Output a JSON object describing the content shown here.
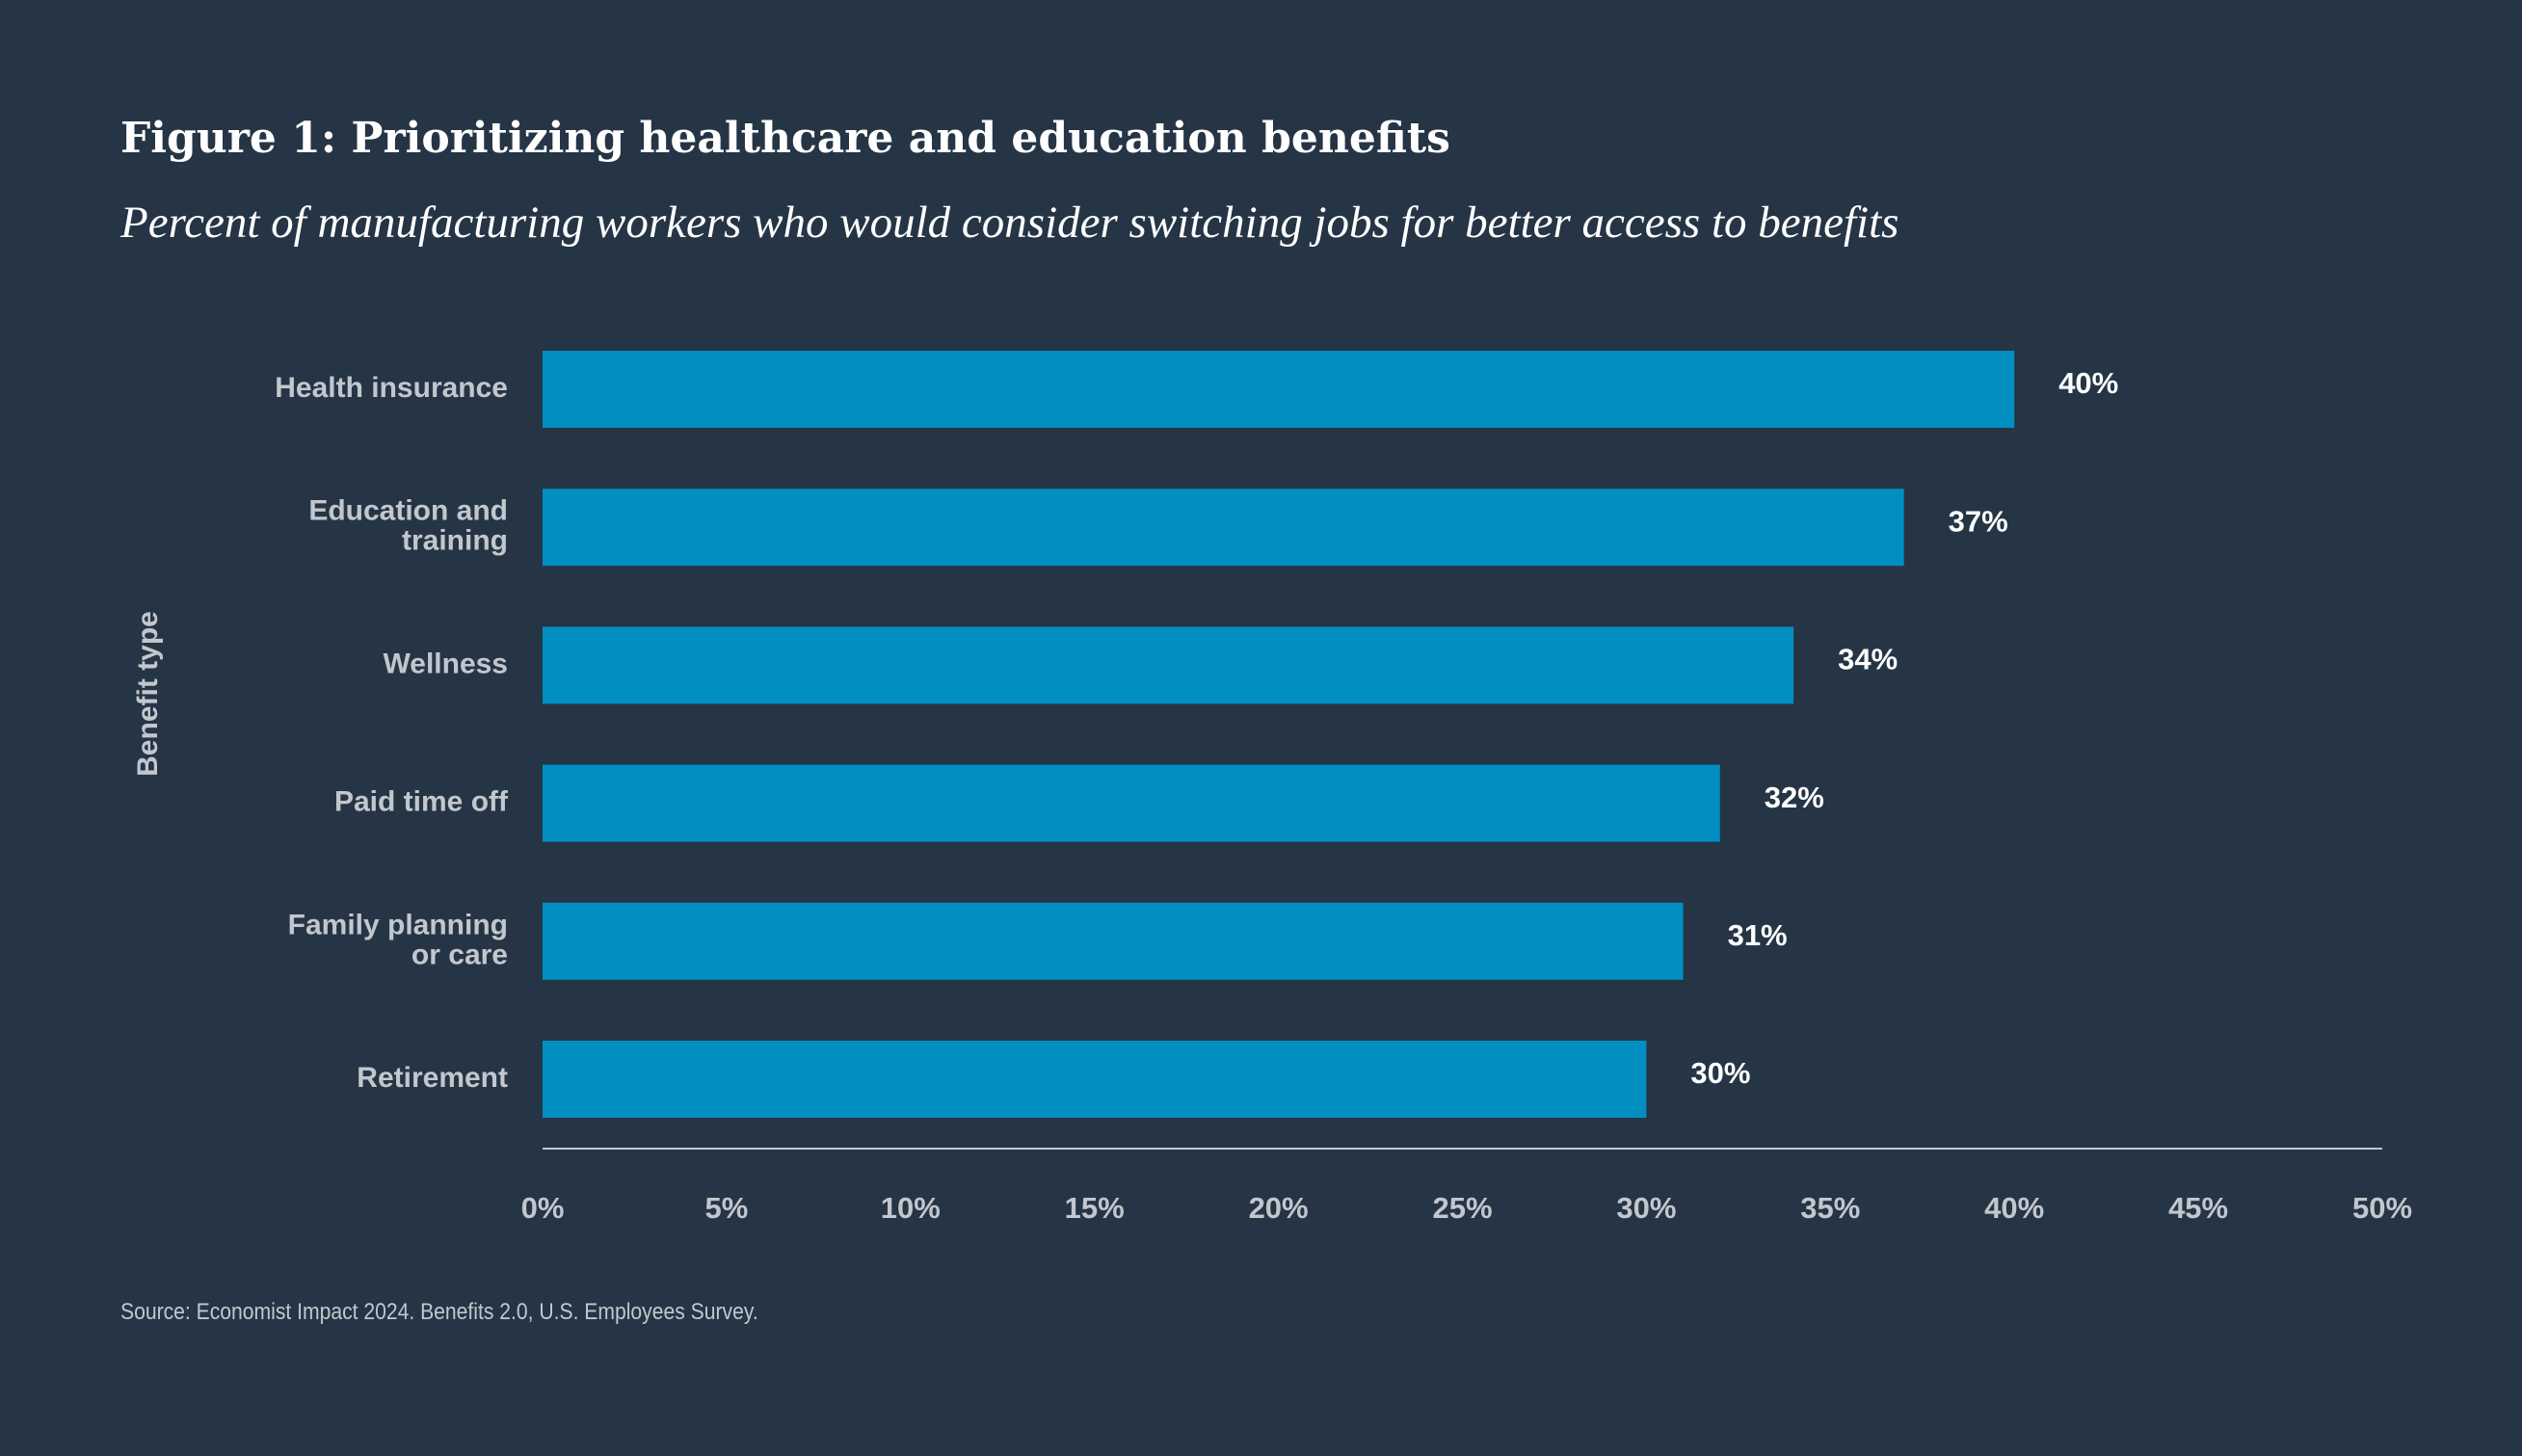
{
  "figure": {
    "title": "Figure 1: Prioritizing healthcare and education benefits",
    "subtitle": "Percent of manufacturing workers who would consider switching jobs for better access to benefits",
    "source": "Source: Economist Impact 2024. Benefits 2.0, U.S. Employees Survey."
  },
  "colors": {
    "background": "#253545",
    "bar": "#008fc0",
    "text": "#ffffff",
    "muted_text": "#c2c7cd",
    "axis_line": "#c2c7cd"
  },
  "chart_data": {
    "type": "bar",
    "orientation": "horizontal",
    "title": "Figure 1: Prioritizing healthcare and education benefits",
    "subtitle": "Percent of manufacturing workers who would consider switching jobs for better access to benefits",
    "ylabel": "Benefit type",
    "xlabel": "",
    "categories": [
      [
        "Health insurance"
      ],
      [
        "Education and",
        "training"
      ],
      [
        "Wellness"
      ],
      [
        "Paid time off"
      ],
      [
        "Family planning",
        "or care"
      ],
      [
        "Retirement"
      ]
    ],
    "values": [
      40,
      37,
      34,
      32,
      31,
      30
    ],
    "value_labels": [
      "40%",
      "37%",
      "34%",
      "32%",
      "31%",
      "30%"
    ],
    "xlim": [
      0,
      50
    ],
    "xticks": [
      0,
      5,
      10,
      15,
      20,
      25,
      30,
      35,
      40,
      45,
      50
    ],
    "xtick_labels": [
      "0%",
      "5%",
      "10%",
      "15%",
      "20%",
      "25%",
      "30%",
      "35%",
      "40%",
      "45%",
      "50%"
    ],
    "grid": false,
    "legend": "none"
  }
}
